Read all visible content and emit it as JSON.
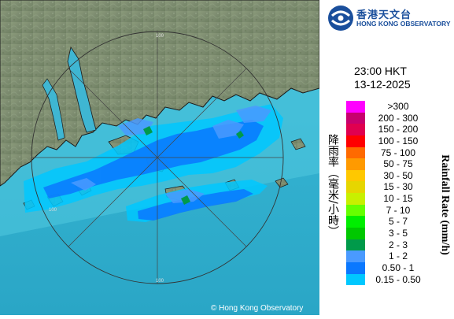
{
  "logo": {
    "chinese": "香港天文台",
    "english": "HONG KONG OBSERVATORY"
  },
  "map": {
    "time": "23:00 HKT",
    "date": "13-12-2025",
    "copyright": "© Hong Kong Observatory",
    "range_labels": [
      "100",
      "100",
      "100"
    ]
  },
  "legend": {
    "title_cn": "降雨率（毫米/小時）",
    "title_en": "Rainfall Rate (mm/h)",
    "items": [
      {
        "label": ">300",
        "color": "#ff00ff"
      },
      {
        "label": "200 - 300",
        "color": "#c8006e"
      },
      {
        "label": "150 - 200",
        "color": "#e00050"
      },
      {
        "label": "100 - 150",
        "color": "#ff0000"
      },
      {
        "label": "75 - 100",
        "color": "#ff6a00"
      },
      {
        "label": "50 - 75",
        "color": "#ff9a00"
      },
      {
        "label": "30 - 50",
        "color": "#ffc800"
      },
      {
        "label": "15 - 30",
        "color": "#e6d600"
      },
      {
        "label": "10 - 15",
        "color": "#c8f000"
      },
      {
        "label": "7 - 10",
        "color": "#66ff00"
      },
      {
        "label": "5 - 7",
        "color": "#00ee00"
      },
      {
        "label": "3 - 5",
        "color": "#00c800"
      },
      {
        "label": "2 - 3",
        "color": "#009a4a"
      },
      {
        "label": "1 - 2",
        "color": "#4a9aff"
      },
      {
        "label": "0.50 - 1",
        "color": "#0a78ff"
      },
      {
        "label": "0.15 - 0.50",
        "color": "#00c8ff"
      }
    ]
  }
}
